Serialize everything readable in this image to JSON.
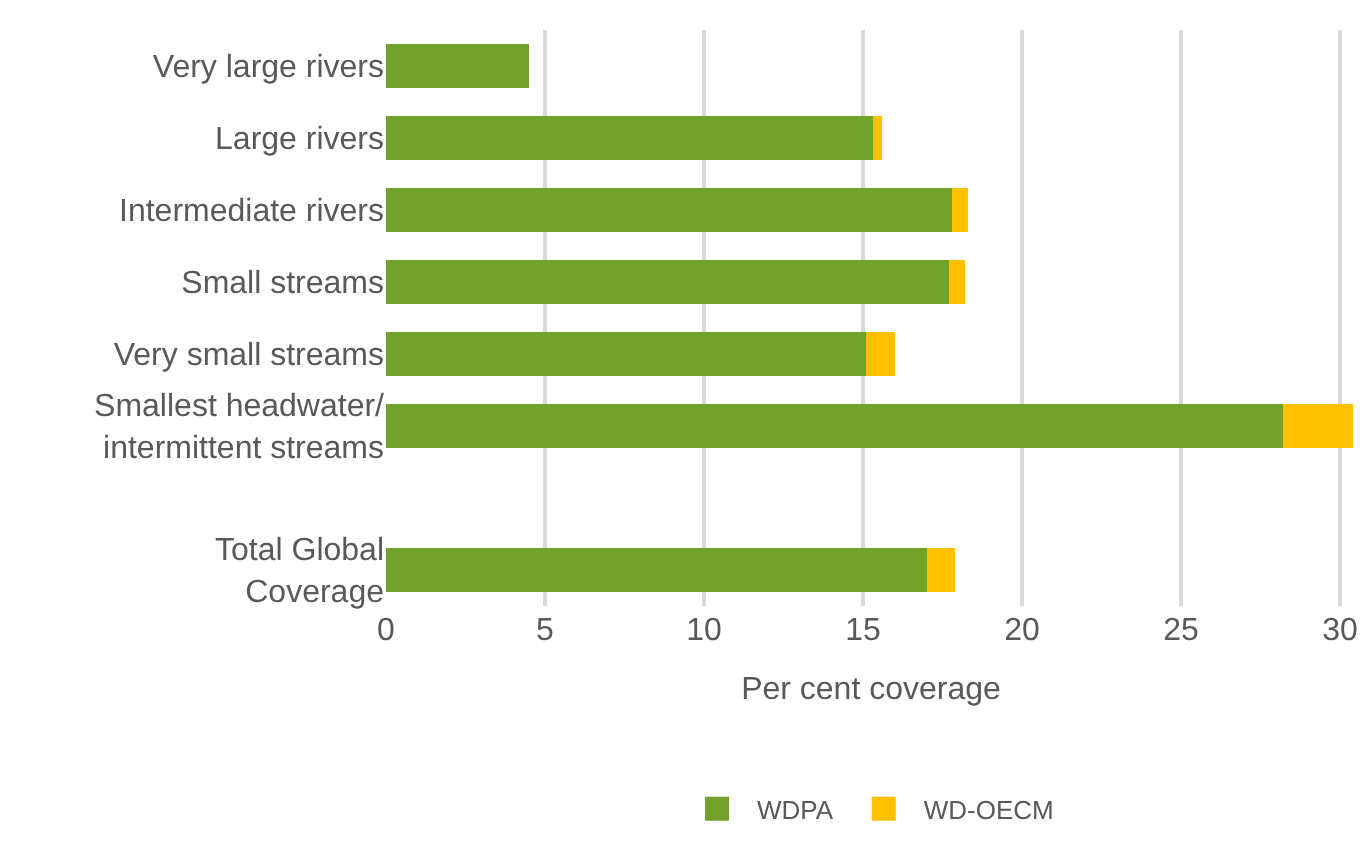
{
  "chart_data": {
    "type": "bar",
    "orientation": "horizontal",
    "stacked": true,
    "xlabel": "Per cent coverage",
    "categories": [
      "Very large rivers",
      "Large rivers",
      "Intermediate rivers",
      "Small streams",
      "Very small streams",
      "Smallest headwater/ intermittent streams",
      null,
      "Total Global Coverage"
    ],
    "series": [
      {
        "name": "WDPA",
        "color": "#72a22c",
        "values": [
          4.5,
          15.3,
          17.8,
          17.7,
          15.1,
          28.2,
          null,
          17.0
        ]
      },
      {
        "name": "WD-OECM",
        "color": "#ffc000",
        "values": [
          null,
          0.3,
          0.5,
          0.5,
          0.9,
          2.2,
          null,
          0.9
        ]
      }
    ],
    "xlim": [
      0,
      30.5
    ],
    "xticks": [
      0,
      5,
      10,
      15,
      20,
      25,
      30
    ],
    "grid": "x",
    "legend": "bottom"
  }
}
